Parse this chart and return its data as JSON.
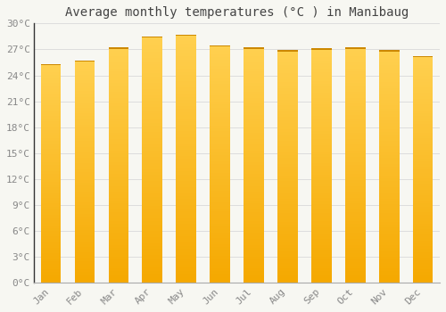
{
  "title": "Average monthly temperatures (°C ) in Manibaug",
  "months": [
    "Jan",
    "Feb",
    "Mar",
    "Apr",
    "May",
    "Jun",
    "Jul",
    "Aug",
    "Sep",
    "Oct",
    "Nov",
    "Dec"
  ],
  "temperatures": [
    25.3,
    25.7,
    27.2,
    28.5,
    28.7,
    27.5,
    27.2,
    26.9,
    27.1,
    27.2,
    26.9,
    26.2
  ],
  "bar_color_bottom": "#F5A800",
  "bar_color_top": "#FFD050",
  "bar_top_line_color": "#CC8800",
  "background_color": "#F7F7F2",
  "grid_color": "#DDDDDD",
  "text_color": "#888888",
  "title_color": "#444444",
  "ylim": [
    0,
    30
  ],
  "yticks": [
    0,
    3,
    6,
    9,
    12,
    15,
    18,
    21,
    24,
    27,
    30
  ],
  "ytick_labels": [
    "0°C",
    "3°C",
    "6°C",
    "9°C",
    "12°C",
    "15°C",
    "18°C",
    "21°C",
    "24°C",
    "27°C",
    "30°C"
  ],
  "title_fontsize": 10,
  "tick_fontsize": 8,
  "bar_width": 0.6,
  "num_gradient_steps": 80
}
